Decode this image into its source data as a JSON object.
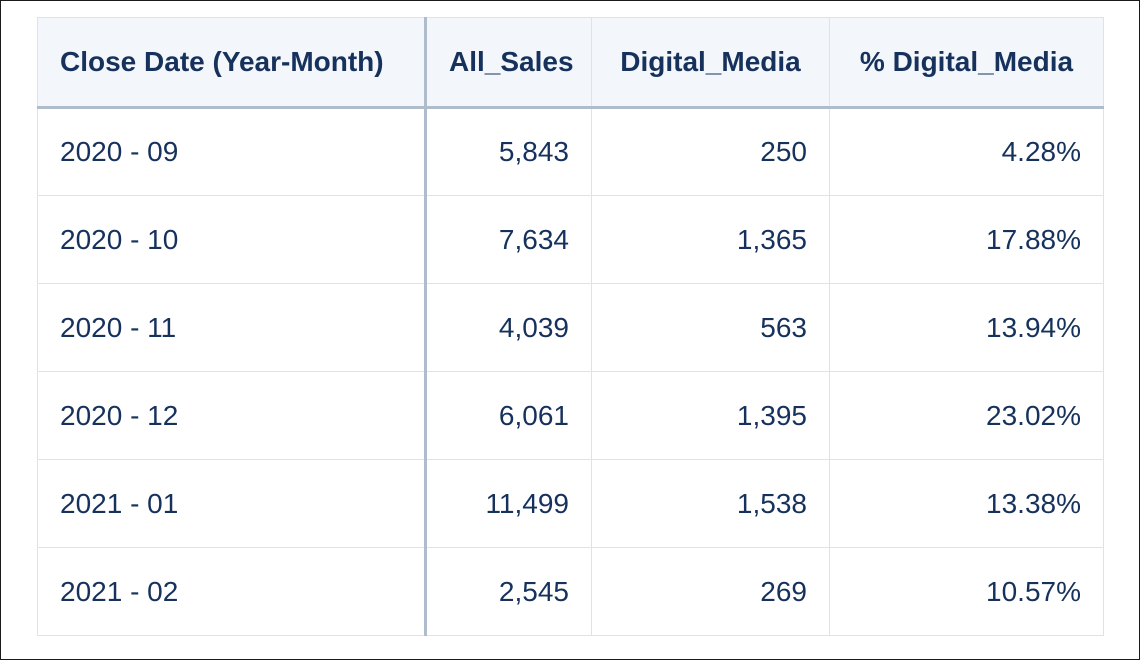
{
  "table": {
    "columns": [
      "Close Date (Year-Month)",
      "All_Sales",
      "Digital_Media",
      "% Digital_Media"
    ],
    "rows": [
      {
        "close_date": "2020 - 09",
        "all_sales": "5,843",
        "digital_media": "250",
        "pct_digital_media": "4.28%"
      },
      {
        "close_date": "2020 - 10",
        "all_sales": "7,634",
        "digital_media": "1,365",
        "pct_digital_media": "17.88%"
      },
      {
        "close_date": "2020 - 11",
        "all_sales": "4,039",
        "digital_media": "563",
        "pct_digital_media": "13.94%"
      },
      {
        "close_date": "2020 - 12",
        "all_sales": "6,061",
        "digital_media": "1,395",
        "pct_digital_media": "23.02%"
      },
      {
        "close_date": "2021 - 01",
        "all_sales": "11,499",
        "digital_media": "1,538",
        "pct_digital_media": "13.38%"
      },
      {
        "close_date": "2021 - 02",
        "all_sales": "2,545",
        "digital_media": "269",
        "pct_digital_media": "10.57%"
      }
    ]
  },
  "colors": {
    "text": "#16325c",
    "header_background": "#f3f6fa",
    "grid_line": "#dde3ec",
    "accent_divider": "#aebccb"
  }
}
